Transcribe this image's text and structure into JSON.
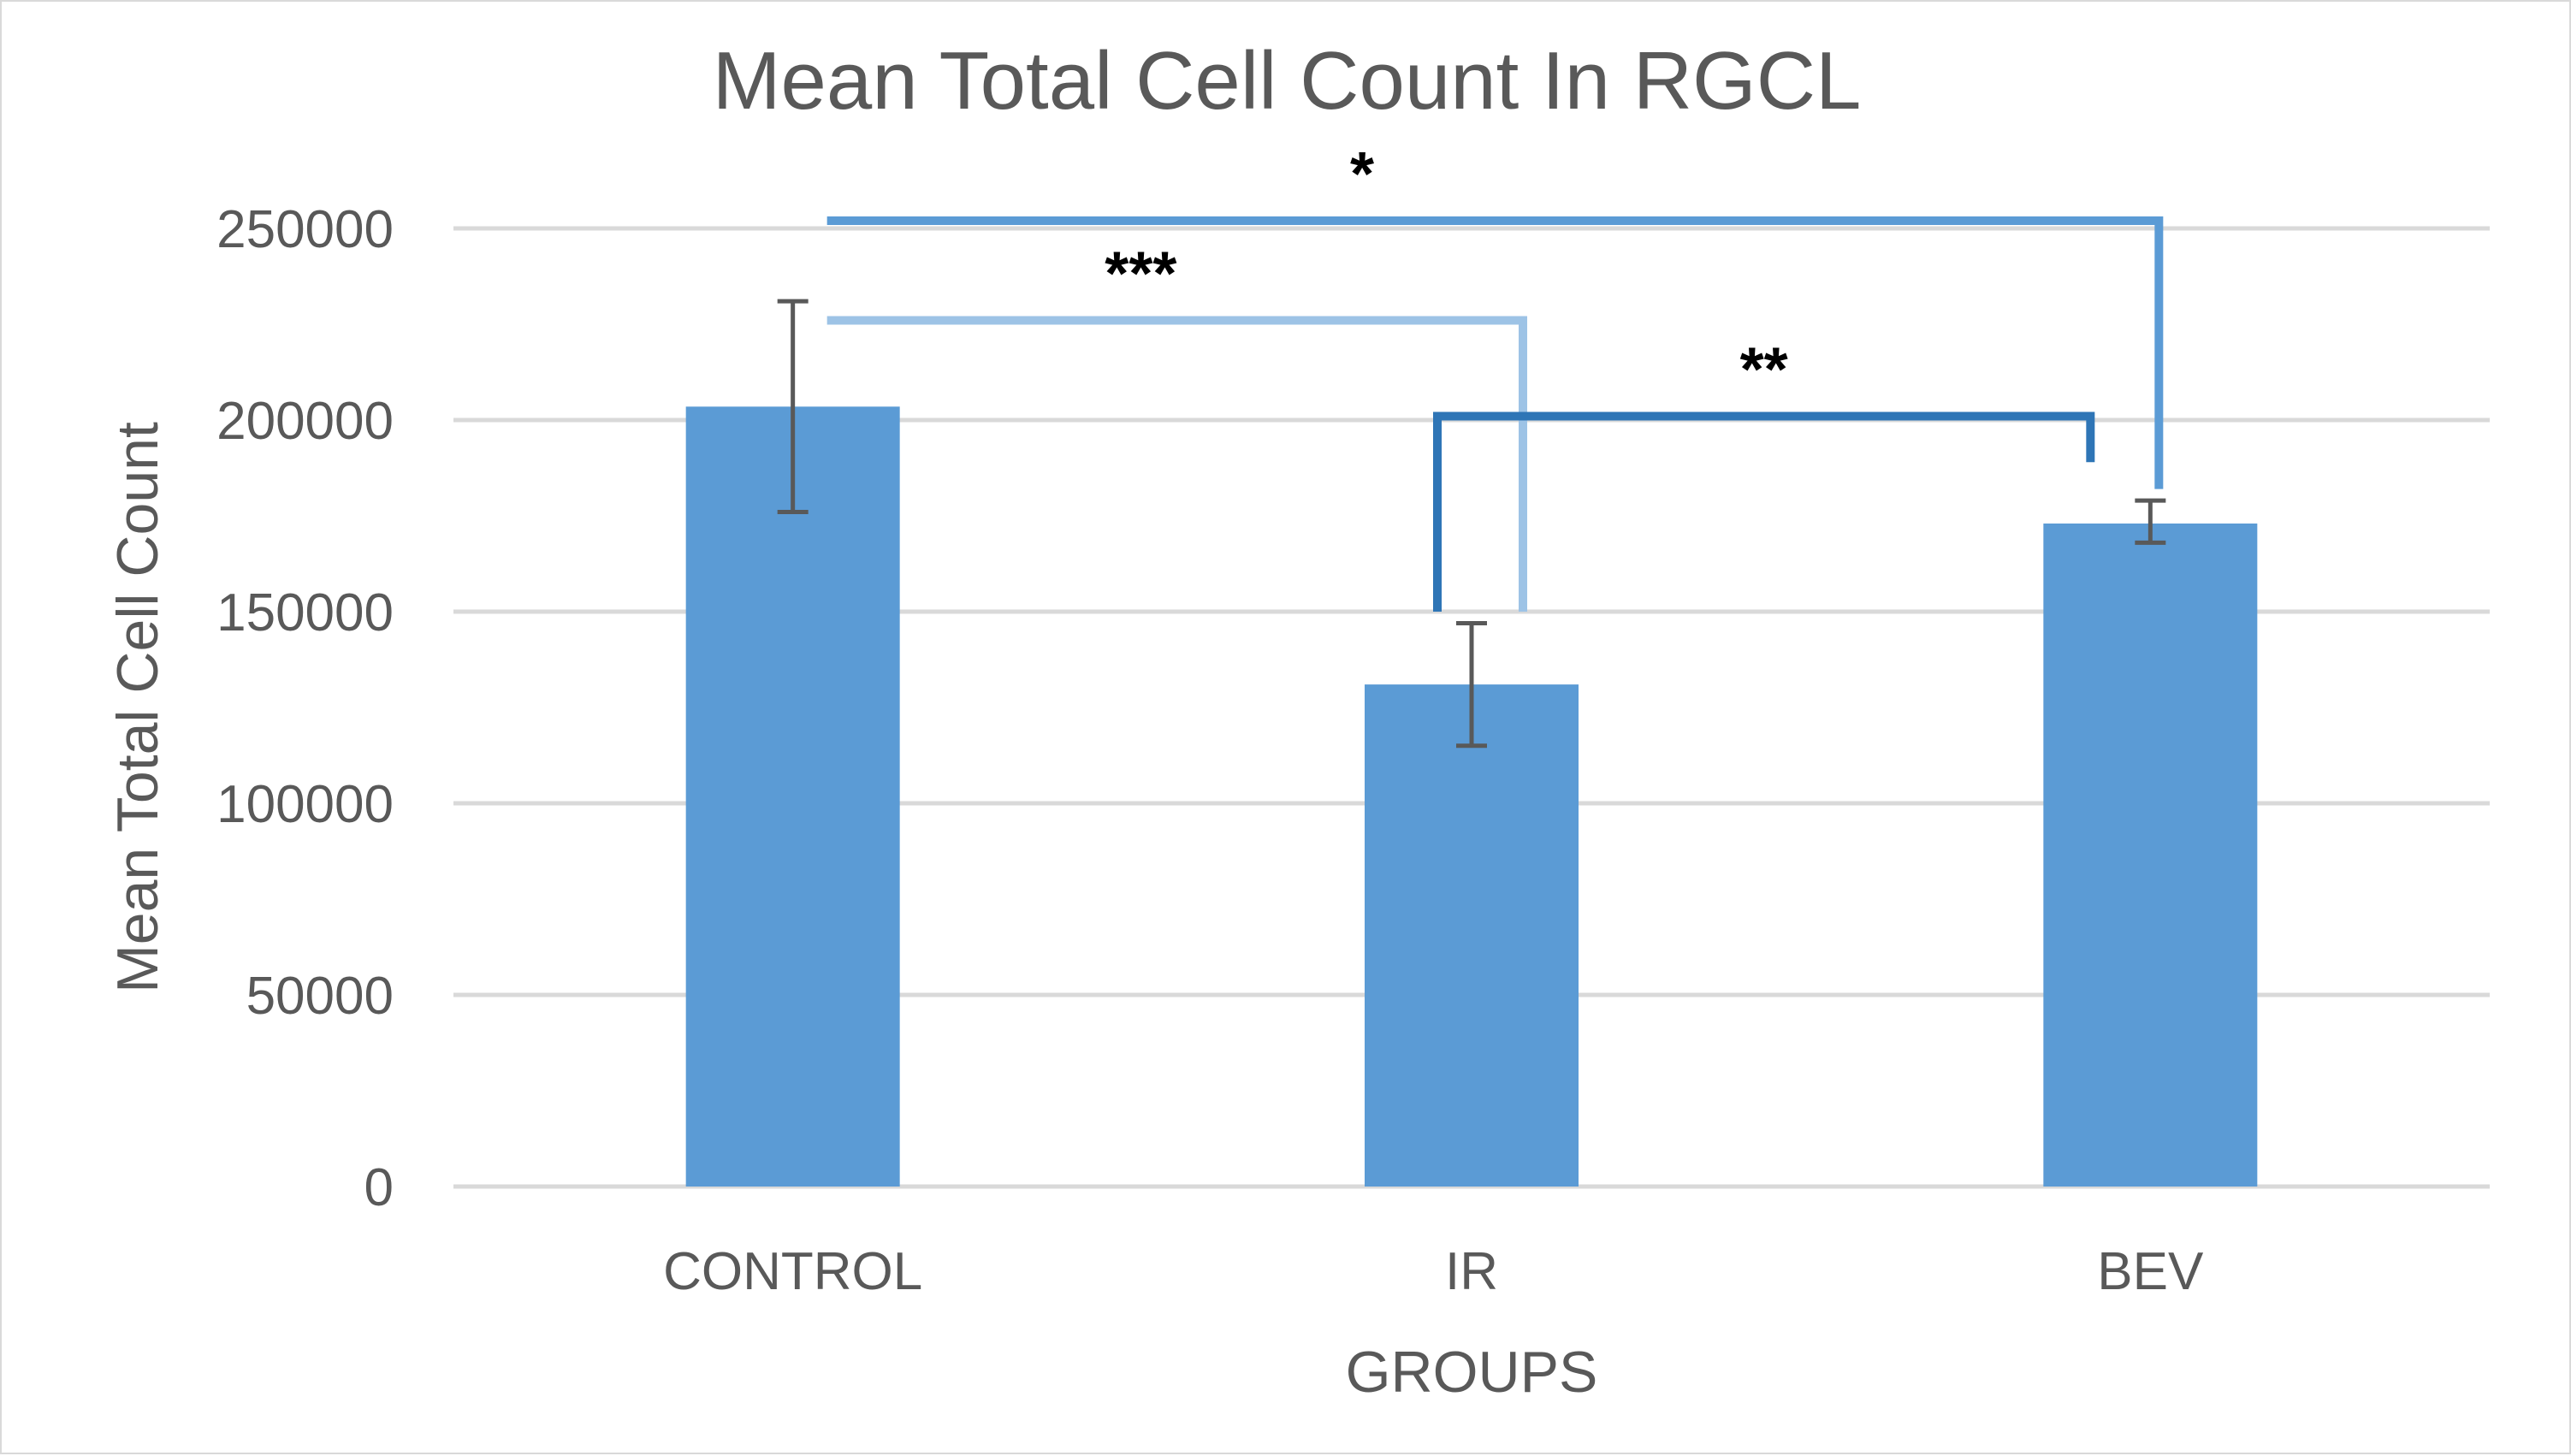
{
  "chart_data": {
    "type": "bar",
    "title": "Mean Total Cell Count In RGCL",
    "xlabel": "GROUPS",
    "ylabel": "Mean Total Cell Count",
    "categories": [
      "CONTROL",
      "IR",
      "BEV"
    ],
    "values": [
      203500,
      131000,
      173000
    ],
    "error_bars": [
      {
        "upper": 231000,
        "lower": 176000
      },
      {
        "upper": 147000,
        "lower": 115000
      },
      {
        "upper": 179000,
        "lower": 168000
      }
    ],
    "ylim": [
      0,
      250000
    ],
    "yticks": [
      0,
      50000,
      100000,
      150000,
      200000,
      250000
    ],
    "ytick_labels": [
      "0",
      "50000",
      "100000",
      "150000",
      "200000",
      "250000"
    ],
    "grid": true,
    "legend": "none",
    "bar_color": "#5b9bd5",
    "significance": [
      {
        "from": "CONTROL",
        "to": "BEV",
        "label": "*",
        "level": 252000,
        "color": "#5b9bd5"
      },
      {
        "from": "CONTROL",
        "to": "IR",
        "label": "***",
        "level": 226000,
        "color": "#9dc3e6"
      },
      {
        "from": "IR",
        "to": "BEV",
        "label": "**",
        "level": 201000,
        "color": "#2e75b6"
      }
    ]
  }
}
